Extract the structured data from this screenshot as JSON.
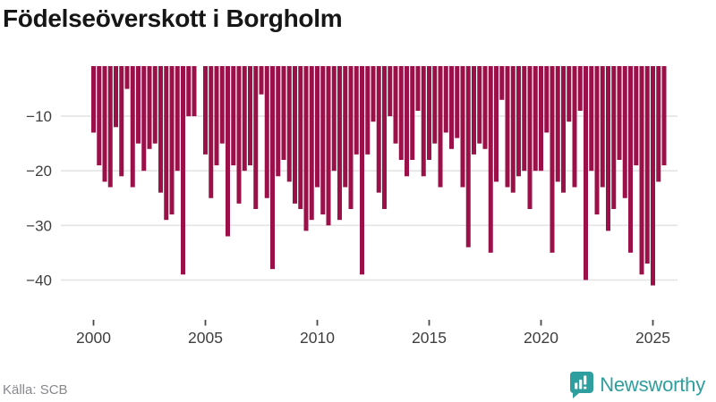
{
  "title": "Födelseöverskott i Borgholm",
  "chart_data": {
    "type": "bar",
    "title": "Födelseöverskott i Borgholm",
    "unit": "quarterly birth surplus (births minus deaths)",
    "x": [
      "2000Q1",
      "2000Q2",
      "2000Q3",
      "2000Q4",
      "2001Q1",
      "2001Q2",
      "2001Q3",
      "2001Q4",
      "2002Q1",
      "2002Q2",
      "2002Q3",
      "2002Q4",
      "2003Q1",
      "2003Q2",
      "2003Q3",
      "2003Q4",
      "2004Q1",
      "2004Q2",
      "2004Q3",
      "2004Q4",
      "2005Q1",
      "2005Q2",
      "2005Q3",
      "2005Q4",
      "2006Q1",
      "2006Q2",
      "2006Q3",
      "2006Q4",
      "2007Q1",
      "2007Q2",
      "2007Q3",
      "2007Q4",
      "2008Q1",
      "2008Q2",
      "2008Q3",
      "2008Q4",
      "2009Q1",
      "2009Q2",
      "2009Q3",
      "2009Q4",
      "2010Q1",
      "2010Q2",
      "2010Q3",
      "2010Q4",
      "2011Q1",
      "2011Q2",
      "2011Q3",
      "2011Q4",
      "2012Q1",
      "2012Q2",
      "2012Q3",
      "2012Q4",
      "2013Q1",
      "2013Q2",
      "2013Q3",
      "2013Q4",
      "2014Q1",
      "2014Q2",
      "2014Q3",
      "2014Q4",
      "2015Q1",
      "2015Q2",
      "2015Q3",
      "2015Q4",
      "2016Q1",
      "2016Q2",
      "2016Q3",
      "2016Q4",
      "2017Q1",
      "2017Q2",
      "2017Q3",
      "2017Q4",
      "2018Q1",
      "2018Q2",
      "2018Q3",
      "2018Q4",
      "2019Q1",
      "2019Q2",
      "2019Q3",
      "2019Q4",
      "2020Q1",
      "2020Q2",
      "2020Q3",
      "2020Q4",
      "2021Q1",
      "2021Q2",
      "2021Q3",
      "2021Q4",
      "2022Q1",
      "2022Q2",
      "2022Q3",
      "2022Q4",
      "2023Q1",
      "2023Q2",
      "2023Q3",
      "2023Q4",
      "2024Q1",
      "2024Q2",
      "2024Q3",
      "2024Q4",
      "2025Q1",
      "2025Q2",
      "2025Q3"
    ],
    "values": [
      -13,
      -19,
      -22,
      -23,
      -12,
      -21,
      -5,
      -23,
      -15,
      -20,
      -16,
      -15,
      -24,
      -29,
      -28,
      -20,
      -39,
      -10,
      -10,
      0,
      -17,
      -25,
      -19,
      -15,
      -32,
      -19,
      -26,
      -20,
      -19,
      -27,
      -6,
      -25,
      -38,
      -21,
      -18,
      -22,
      -26,
      -27,
      -31,
      -29,
      -23,
      -28,
      -30,
      -20,
      -29,
      -23,
      -27,
      -17,
      -39,
      -17,
      -11,
      -24,
      -27,
      -10,
      -15,
      -18,
      -21,
      -18,
      -9,
      -21,
      -18,
      -15,
      -23,
      -13,
      -16,
      -14,
      -23,
      -34,
      -17,
      -15,
      -16,
      -35,
      -22,
      -7,
      -23,
      -24,
      -21,
      -20,
      -27,
      -20,
      -20,
      -13,
      -35,
      -22,
      -24,
      -11,
      -23,
      -9,
      -40,
      -20,
      -28,
      -23,
      -31,
      -27,
      -18,
      -25,
      -35,
      -19,
      -39,
      -37,
      -41,
      -22,
      -19
    ],
    "xticks": [
      2000,
      2005,
      2010,
      2015,
      2020,
      2025
    ],
    "yticks": [
      -10,
      -20,
      -30,
      -40
    ],
    "ylim": [
      -45,
      0
    ],
    "grid": "horizontal",
    "legend": "none",
    "bar_color": "#9b1048",
    "grid_color": "#e4e4e4",
    "axis_text_color": "#3f3f3f"
  },
  "footer": {
    "source": "Källa: SCB",
    "brand": "Newsworthy",
    "brand_color": "#2f9e9e"
  }
}
